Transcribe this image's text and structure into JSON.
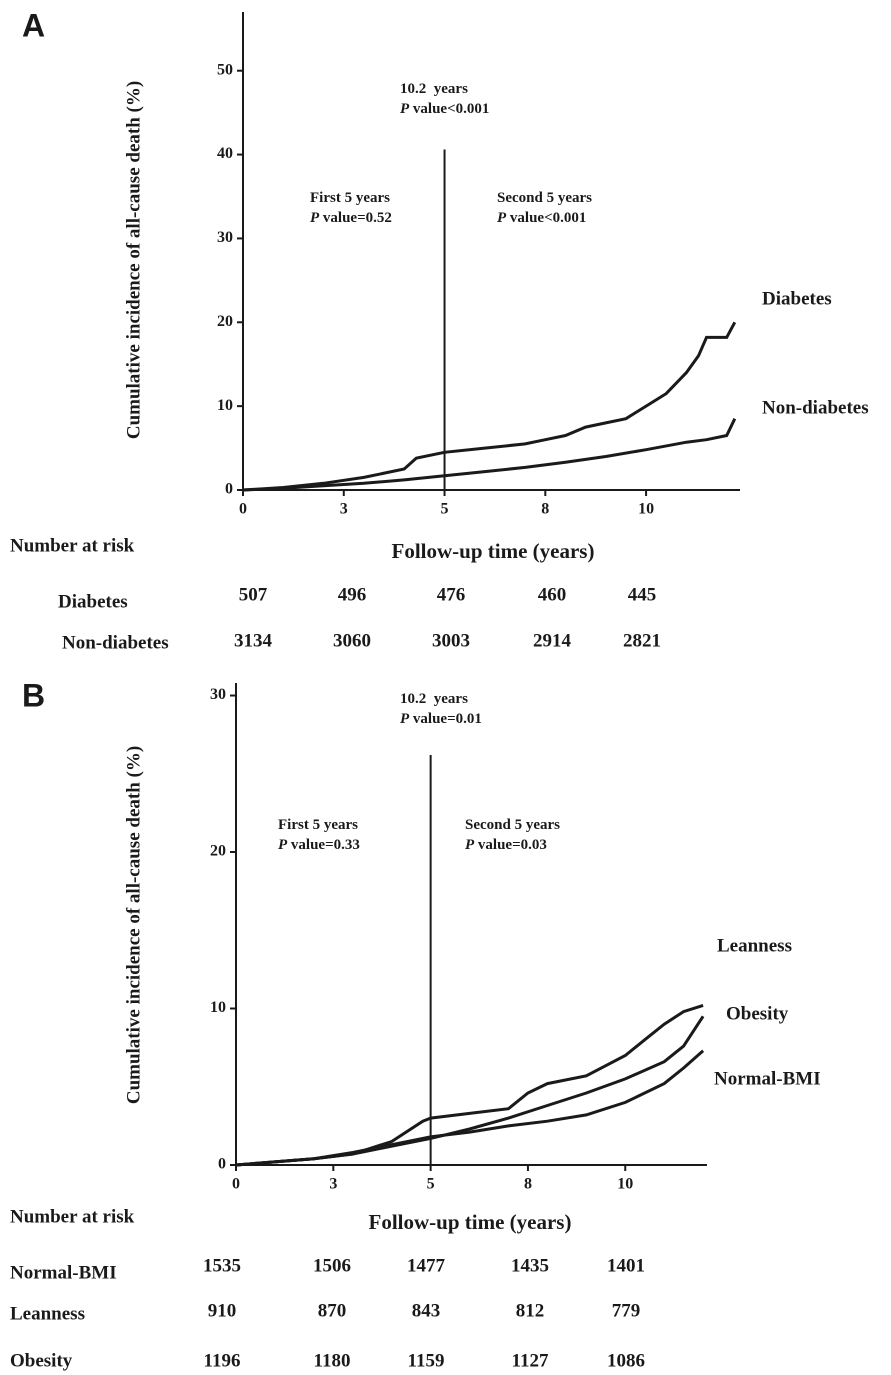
{
  "chart_data": [
    {
      "type": "line",
      "panel": "A",
      "ylabel": "Cumulative incidence of all-cause death (%)",
      "xlabel": "Follow-up time (years)",
      "xlim": [
        0,
        12.33
      ],
      "ylim": [
        0,
        57
      ],
      "xticks": [
        0,
        {
          "value": 2.5,
          "label": "3"
        },
        5,
        {
          "value": 7.5,
          "label": "8"
        },
        10
      ],
      "yticks": [
        0,
        10,
        20,
        30,
        40,
        50
      ],
      "vline": {
        "x": 5,
        "y_end": 40.6
      },
      "annotations": [
        {
          "lines": [
            {
              "text": "10.2  years"
            },
            {
              "italic": "P",
              "text": " value<0.001"
            }
          ]
        },
        {
          "lines": [
            {
              "text": "First 5 years"
            },
            {
              "italic": "P",
              "text": " value=0.52"
            }
          ]
        },
        {
          "lines": [
            {
              "text": "Second 5 years"
            },
            {
              "italic": "P",
              "text": " value<0.001"
            }
          ]
        }
      ],
      "series": [
        {
          "name": "Diabetes",
          "color": "#1a1a1a",
          "x": [
            0,
            1,
            2,
            3,
            4,
            4.3,
            5,
            6,
            7,
            7.5,
            8,
            8.5,
            9,
            9.5,
            10,
            10.5,
            11,
            11.3,
            11.5,
            12,
            12.2
          ],
          "values": [
            0,
            0.3,
            0.8,
            1.5,
            2.5,
            3.8,
            4.5,
            5.0,
            5.5,
            6.0,
            6.5,
            7.5,
            8.0,
            8.5,
            10.0,
            11.5,
            14,
            16,
            18.2,
            18.2,
            20
          ]
        },
        {
          "name": "Non-diabetes",
          "color": "#1a1a1a",
          "x": [
            0,
            1,
            2,
            3,
            4,
            5,
            6,
            7,
            8,
            9,
            10,
            11,
            11.5,
            12,
            12.2
          ],
          "values": [
            0,
            0.2,
            0.5,
            0.8,
            1.2,
            1.7,
            2.2,
            2.7,
            3.3,
            4.0,
            4.8,
            5.7,
            6.0,
            6.5,
            8.5
          ]
        }
      ],
      "risk_table": {
        "title": "Number at risk",
        "rows": [
          {
            "label": "Diabetes",
            "values": [
              507,
              496,
              476,
              460,
              445
            ]
          },
          {
            "label": "Non-diabetes",
            "values": [
              3134,
              3060,
              3003,
              2914,
              2821
            ]
          }
        ]
      }
    },
    {
      "type": "line",
      "panel": "B",
      "ylabel": "Cumulative incidence of all-cause death (%)",
      "xlabel": "Follow-up time (years)",
      "xlim": [
        0,
        12.1
      ],
      "ylim": [
        0,
        30.8
      ],
      "xticks": [
        0,
        {
          "value": 2.5,
          "label": "3"
        },
        5,
        {
          "value": 7.5,
          "label": "8"
        },
        10
      ],
      "yticks": [
        0,
        10,
        20,
        30
      ],
      "vline": {
        "x": 5,
        "y_end": 26.2
      },
      "annotations": [
        {
          "lines": [
            {
              "text": "10.2  years"
            },
            {
              "italic": "P",
              "text": " value=0.01"
            }
          ]
        },
        {
          "lines": [
            {
              "text": "First 5 years"
            },
            {
              "italic": "P",
              "text": " value=0.33"
            }
          ]
        },
        {
          "lines": [
            {
              "text": "Second 5 years"
            },
            {
              "italic": "P",
              "text": " value=0.03"
            }
          ]
        }
      ],
      "series": [
        {
          "name": "Leanness",
          "color": "#1a1a1a",
          "x": [
            0,
            1,
            2,
            3,
            4,
            4.8,
            5,
            6,
            7,
            7.5,
            8,
            9,
            10,
            10.5,
            11,
            11.5,
            12
          ],
          "values": [
            0,
            0.2,
            0.4,
            0.7,
            1.5,
            2.8,
            3.0,
            3.3,
            3.6,
            4.6,
            5.2,
            5.7,
            7.0,
            8.0,
            9.0,
            9.8,
            10.2
          ]
        },
        {
          "name": "Obesity",
          "color": "#1a1a1a",
          "x": [
            0,
            2,
            3,
            4,
            5,
            6,
            7,
            8,
            9,
            10,
            11,
            11.5,
            12
          ],
          "values": [
            0,
            0.4,
            0.7,
            1.2,
            1.7,
            2.3,
            3.0,
            3.8,
            4.6,
            5.5,
            6.6,
            7.6,
            9.5
          ]
        },
        {
          "name": "Normal-BMI",
          "color": "#1a1a1a",
          "x": [
            0,
            2,
            3,
            4,
            5,
            6,
            7,
            8,
            9,
            10,
            11,
            11.5,
            12
          ],
          "values": [
            0,
            0.4,
            0.8,
            1.3,
            1.8,
            2.1,
            2.5,
            2.8,
            3.2,
            4.0,
            5.2,
            6.2,
            7.3
          ]
        }
      ],
      "risk_table": {
        "title": "Number at risk",
        "rows": [
          {
            "label": "Normal-BMI",
            "values": [
              1535,
              1506,
              1477,
              1435,
              1401
            ]
          },
          {
            "label": "Leanness",
            "values": [
              910,
              870,
              843,
              812,
              779
            ]
          },
          {
            "label": "Obesity",
            "values": [
              1196,
              1180,
              1159,
              1127,
              1086
            ]
          }
        ]
      }
    }
  ]
}
